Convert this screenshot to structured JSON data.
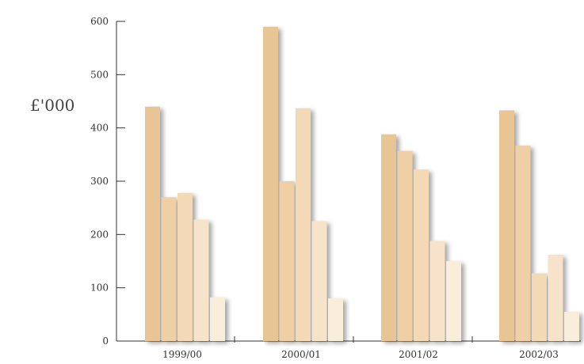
{
  "chart_data": {
    "type": "bar",
    "title": "",
    "xlabel": "",
    "ylabel": "£'000",
    "ylim": [
      0,
      600
    ],
    "y_ticks": [
      0,
      100,
      200,
      300,
      400,
      500,
      600
    ],
    "grid": false,
    "legend": "none",
    "categories": [
      "1999/00",
      "2000/01",
      "2001/02",
      "2002/03"
    ],
    "series": [
      {
        "color": "#E8C595",
        "values": [
          440,
          590,
          388,
          433
        ]
      },
      {
        "color": "#EFCFA5",
        "values": [
          270,
          300,
          357,
          367
        ]
      },
      {
        "color": "#F3D9B5",
        "values": [
          278,
          437,
          322,
          127
        ]
      },
      {
        "color": "#F6E3C9",
        "values": [
          228,
          225,
          188,
          162
        ]
      },
      {
        "color": "#F9EDDC",
        "values": [
          82,
          80,
          150,
          55
        ]
      }
    ]
  }
}
